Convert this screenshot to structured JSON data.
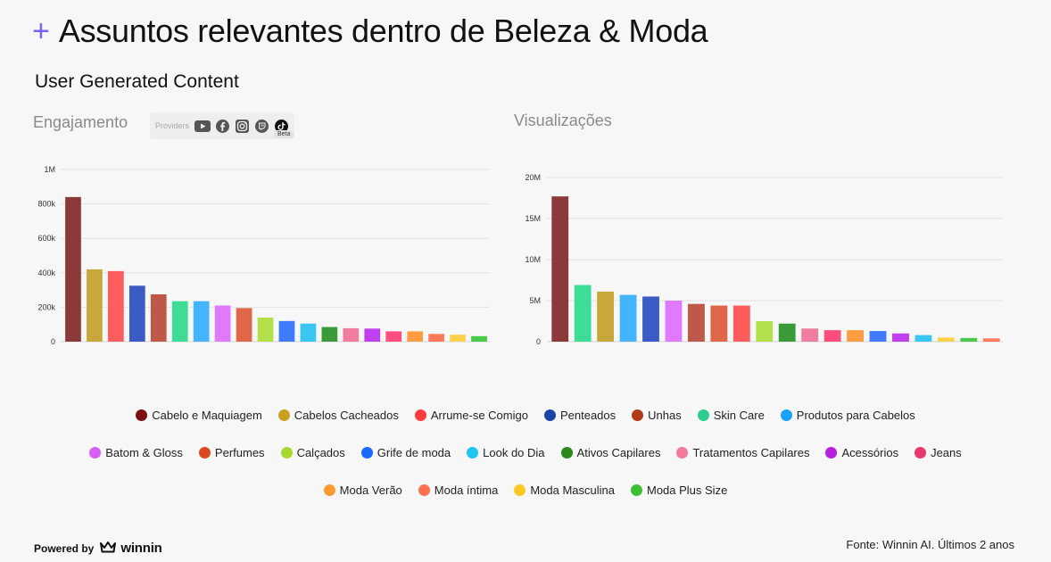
{
  "header": {
    "plus": "+",
    "title": "Assuntos relevantes dentro de Beleza & Moda",
    "subtitle": "User Generated Content"
  },
  "providers": {
    "label": "Providers",
    "icons": [
      "youtube-icon",
      "facebook-icon",
      "instagram-icon",
      "twitch-icon",
      "tiktok-icon"
    ],
    "badge": "Beta"
  },
  "footer": {
    "powered_by": "Powered by",
    "brand": "winnin",
    "source": "Fonte: Winnin AI. Últimos 2 anos"
  },
  "colors": [
    "#8b3a3a",
    "#c9a83b",
    "#ff5c5c",
    "#3b5cc4",
    "#c0584a",
    "#3ddc97",
    "#44b4ff",
    "#df7aff",
    "#e0664a",
    "#b3e04a",
    "#3f7bff",
    "#39c6f0",
    "#3a9a3a",
    "#f07ca0",
    "#c040f0",
    "#ff4e7e",
    "#ff9d40",
    "#ff7a5a",
    "#ffd24a",
    "#4bc94b"
  ],
  "legend_colors": [
    "#7a1010",
    "#c9a020",
    "#ff3c3c",
    "#1c44a8",
    "#b03a1a",
    "#2ecc8f",
    "#1aa0ff",
    "#d95ef5",
    "#d94a20",
    "#a8d830",
    "#1a6aff",
    "#22c4f0",
    "#2a8a1a",
    "#f07a9a",
    "#b820e0",
    "#e83a6a",
    "#ff9a30",
    "#ff7050",
    "#ffc820",
    "#3ac030"
  ],
  "chart_data": [
    {
      "type": "bar",
      "title": "Engajamento",
      "categories": [
        "Cabelo e Maquiagem",
        "Cabelos Cacheados",
        "Arrume-se Comigo",
        "Penteados",
        "Unhas",
        "Skin Care",
        "Produtos para Cabelos",
        "Batom & Gloss",
        "Perfumes",
        "Calçados",
        "Grife de moda",
        "Look do Dia",
        "Ativos Capilares",
        "Tratamentos Capilares",
        "Acessórios",
        "Jeans",
        "Moda Verão",
        "Moda íntima",
        "Moda Masculina",
        "Moda Plus Size"
      ],
      "values": [
        840000,
        420000,
        410000,
        325000,
        275000,
        235000,
        235000,
        210000,
        195000,
        140000,
        120000,
        105000,
        85000,
        78000,
        76000,
        60000,
        60000,
        45000,
        40000,
        32000
      ],
      "yticks": [
        0,
        200000,
        400000,
        600000,
        800000,
        1000000
      ],
      "ytick_labels": [
        "0",
        "200k",
        "400k",
        "600k",
        "800k",
        "1M"
      ],
      "ylim": [
        0,
        1000000
      ]
    },
    {
      "type": "bar",
      "title": "Visualizações",
      "categories": [
        "Cabelo e Maquiagem",
        "Skin Care",
        "Cabelos Cacheados",
        "Produtos para Cabelos",
        "Penteados",
        "Batom & Gloss",
        "Unhas",
        "Perfumes",
        "Arrume-se Comigo",
        "Calçados",
        "Ativos Capilares",
        "Tratamentos Capilares",
        "Jeans",
        "Moda Verão",
        "Grife de moda",
        "Acessórios",
        "Look do Dia",
        "Moda Masculina",
        "Moda Plus Size",
        "Moda íntima"
      ],
      "values": [
        17700000,
        6900000,
        6100000,
        5700000,
        5500000,
        5000000,
        4600000,
        4400000,
        4400000,
        2500000,
        2200000,
        1600000,
        1400000,
        1400000,
        1300000,
        1000000,
        800000,
        500000,
        450000,
        400000
      ],
      "yticks": [
        0,
        5000000,
        10000000,
        15000000,
        20000000
      ],
      "ytick_labels": [
        "0",
        "5M",
        "10M",
        "15M",
        "20M"
      ],
      "ylim": [
        0,
        20000000
      ]
    }
  ],
  "legend_rows": [
    [
      "Cabelo e Maquiagem",
      "Cabelos Cacheados",
      "Arrume-se Comigo",
      "Penteados",
      "Unhas",
      "Skin Care",
      "Produtos para Cabelos"
    ],
    [
      "Batom & Gloss",
      "Perfumes",
      "Calçados",
      "Grife de moda",
      "Look do Dia",
      "Ativos Capilares",
      "Tratamentos Capilares",
      "Acessórios",
      "Jeans"
    ],
    [
      "Moda Verão",
      "Moda íntima",
      "Moda Masculina",
      "Moda Plus Size"
    ]
  ]
}
